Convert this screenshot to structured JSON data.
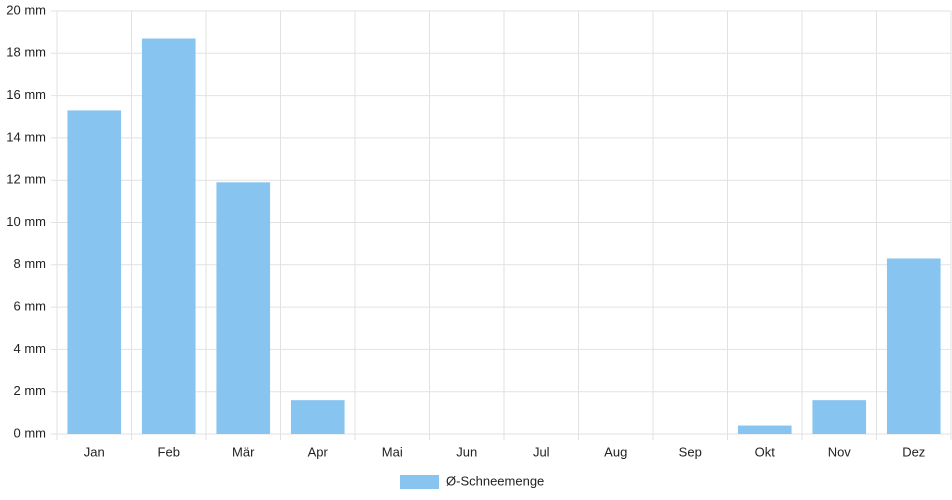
{
  "chart_data": {
    "type": "bar",
    "categories": [
      "Jan",
      "Feb",
      "Mär",
      "Apr",
      "Mai",
      "Jun",
      "Jul",
      "Aug",
      "Sep",
      "Okt",
      "Nov",
      "Dez"
    ],
    "series": [
      {
        "name": "Ø-Schneemenge",
        "color": "#87c5f0",
        "values": [
          15.3,
          18.7,
          11.9,
          1.6,
          0,
          0,
          0,
          0,
          0,
          0.4,
          1.6,
          8.3
        ]
      }
    ],
    "ylim": [
      0,
      20
    ],
    "yticks": [
      {
        "value": 0,
        "label": "0 mm"
      },
      {
        "value": 2,
        "label": "2 mm"
      },
      {
        "value": 4,
        "label": "4 mm"
      },
      {
        "value": 6,
        "label": "6 mm"
      },
      {
        "value": 8,
        "label": "8 mm"
      },
      {
        "value": 10,
        "label": "10 mm"
      },
      {
        "value": 12,
        "label": "12 mm"
      },
      {
        "value": 14,
        "label": "14 mm"
      },
      {
        "value": 16,
        "label": "16 mm"
      },
      {
        "value": 18,
        "label": "18 mm"
      },
      {
        "value": 20,
        "label": "20 mm"
      }
    ],
    "grid": true,
    "legend": "bottom"
  }
}
